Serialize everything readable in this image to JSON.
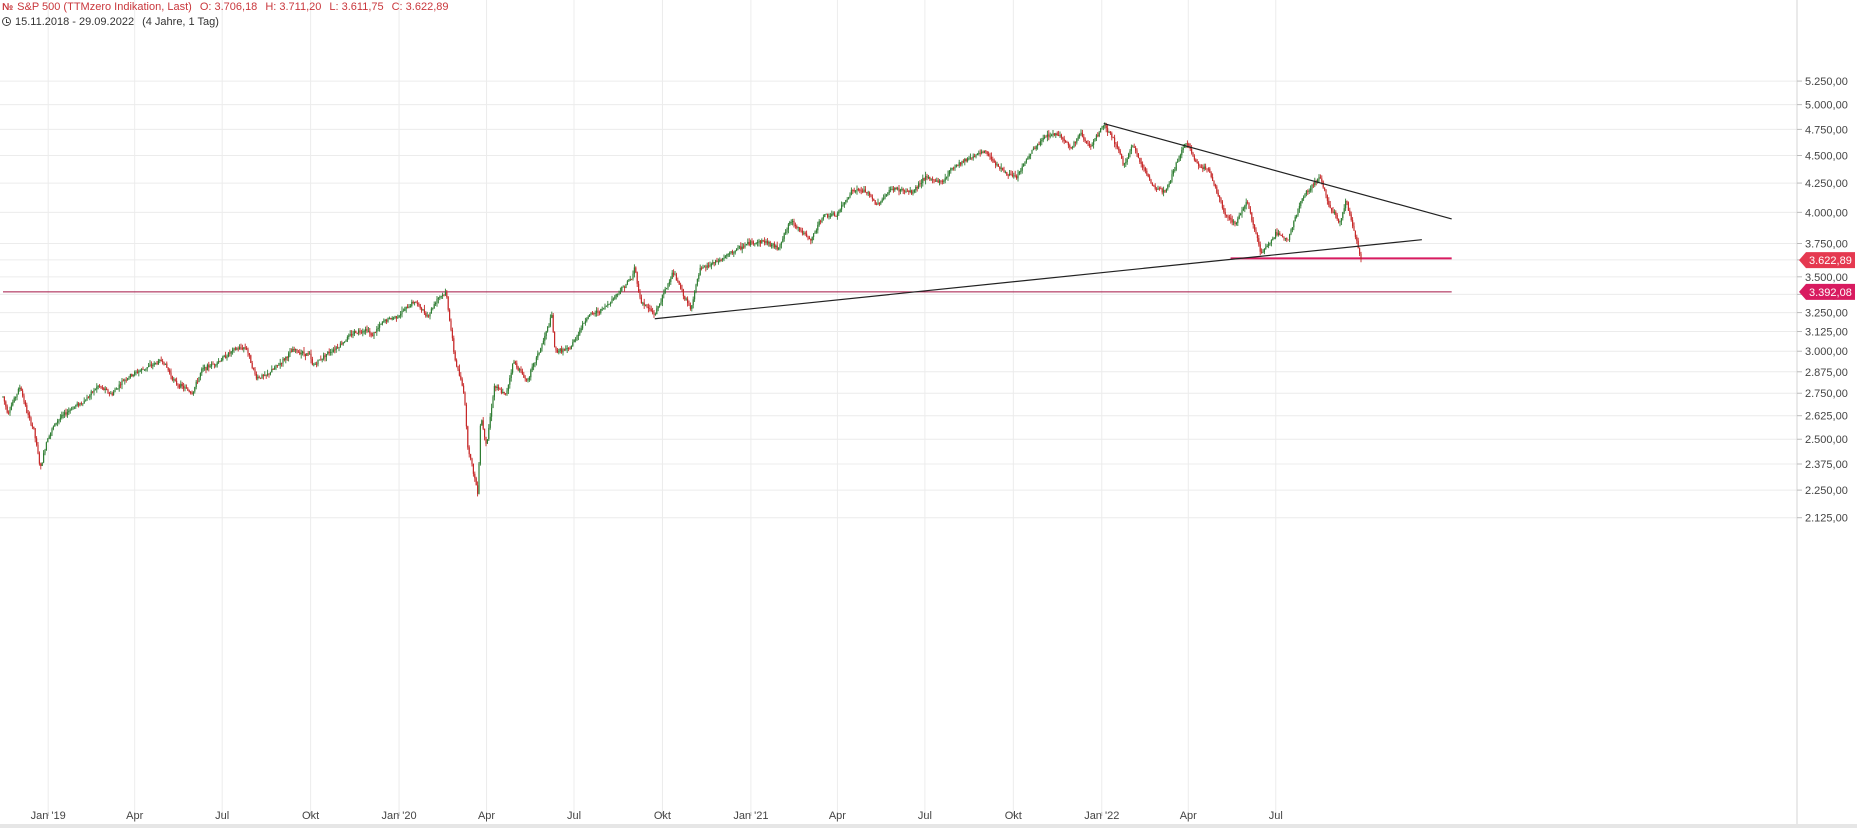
{
  "header": {
    "instrument": "S&P 500 (TTMzero Indikation, Last)",
    "open": "O: 3.706,18",
    "high": "H: 3.711,20",
    "low": "L: 3.611,75",
    "close": "C: 3.622,89",
    "range": "15.11.2018 - 29.09.2022",
    "period": "(4 Jahre, 1 Tag)"
  },
  "colors": {
    "up": "#2e7d32",
    "down": "#c62828",
    "grid": "#ececec",
    "price_line": "#d81b60",
    "level_line": "#a31545",
    "trend_line": "#222222"
  },
  "chart_data": {
    "type": "line",
    "description_kind": "daily candlestick price chart",
    "y_axis": {
      "ticks": [
        2125,
        2250,
        2375,
        2500,
        2625,
        2750,
        2875,
        3000,
        3125,
        3250,
        3375,
        3500,
        3625,
        3750,
        4000,
        4250,
        4500,
        4750,
        5000,
        5250
      ],
      "tick_labels": [
        "2.125,00",
        "2.250,00",
        "2.375,00",
        "2.500,00",
        "2.625,00",
        "2.750,00",
        "2.875,00",
        "3.000,00",
        "3.125,00",
        "3.250,00",
        "3.375,00",
        "3.500,00",
        "3.625,00",
        "3.750,00",
        "4.000,00",
        "4.250,00",
        "4.500,00",
        "4.750,00",
        "5.000,00",
        "5.250,00"
      ],
      "scale": "log",
      "position": "right"
    },
    "x_axis": {
      "range": [
        "2018-11-15",
        "2022-09-29"
      ],
      "ticks": [
        {
          "date": "2019-01-01",
          "label": "Jan '19"
        },
        {
          "date": "2019-04-01",
          "label": "Apr"
        },
        {
          "date": "2019-07-01",
          "label": "Jul"
        },
        {
          "date": "2019-10-01",
          "label": "Okt"
        },
        {
          "date": "2020-01-01",
          "label": "Jan '20"
        },
        {
          "date": "2020-04-01",
          "label": "Apr"
        },
        {
          "date": "2020-07-01",
          "label": "Jul"
        },
        {
          "date": "2020-10-01",
          "label": "Okt"
        },
        {
          "date": "2021-01-01",
          "label": "Jan '21"
        },
        {
          "date": "2021-04-01",
          "label": "Apr"
        },
        {
          "date": "2021-07-01",
          "label": "Jul"
        },
        {
          "date": "2021-10-01",
          "label": "Okt"
        },
        {
          "date": "2022-01-01",
          "label": "Jan '22"
        },
        {
          "date": "2022-04-01",
          "label": "Apr"
        },
        {
          "date": "2022-07-01",
          "label": "Jul"
        }
      ]
    },
    "grid": true,
    "price_path": [
      [
        "2018-11-15",
        2730
      ],
      [
        "2018-11-20",
        2640
      ],
      [
        "2018-12-03",
        2790
      ],
      [
        "2018-12-10",
        2640
      ],
      [
        "2018-12-17",
        2550
      ],
      [
        "2018-12-24",
        2351
      ],
      [
        "2018-12-31",
        2506
      ],
      [
        "2019-01-10",
        2596
      ],
      [
        "2019-01-25",
        2665
      ],
      [
        "2019-02-08",
        2708
      ],
      [
        "2019-02-22",
        2792
      ],
      [
        "2019-03-08",
        2743
      ],
      [
        "2019-03-20",
        2825
      ],
      [
        "2019-04-01",
        2867
      ],
      [
        "2019-04-15",
        2905
      ],
      [
        "2019-04-30",
        2945
      ],
      [
        "2019-05-13",
        2811
      ],
      [
        "2019-05-31",
        2752
      ],
      [
        "2019-06-10",
        2886
      ],
      [
        "2019-06-28",
        2941
      ],
      [
        "2019-07-15",
        3014
      ],
      [
        "2019-07-26",
        3025
      ],
      [
        "2019-08-05",
        2844
      ],
      [
        "2019-08-15",
        2847
      ],
      [
        "2019-08-30",
        2926
      ],
      [
        "2019-09-13",
        3007
      ],
      [
        "2019-09-30",
        2976
      ],
      [
        "2019-10-03",
        2910
      ],
      [
        "2019-10-18",
        2986
      ],
      [
        "2019-10-31",
        3037
      ],
      [
        "2019-11-15",
        3120
      ],
      [
        "2019-11-29",
        3141
      ],
      [
        "2019-12-03",
        3093
      ],
      [
        "2019-12-16",
        3191
      ],
      [
        "2019-12-31",
        3230
      ],
      [
        "2020-01-17",
        3329
      ],
      [
        "2020-01-31",
        3225
      ],
      [
        "2020-02-10",
        3352
      ],
      [
        "2020-02-19",
        3386
      ],
      [
        "2020-02-28",
        2954
      ],
      [
        "2020-03-09",
        2746
      ],
      [
        "2020-03-12",
        2480
      ],
      [
        "2020-03-16",
        2386
      ],
      [
        "2020-03-23",
        2237
      ],
      [
        "2020-03-26",
        2630
      ],
      [
        "2020-04-01",
        2470
      ],
      [
        "2020-04-09",
        2790
      ],
      [
        "2020-04-21",
        2737
      ],
      [
        "2020-04-29",
        2940
      ],
      [
        "2020-05-13",
        2820
      ],
      [
        "2020-05-29",
        3044
      ],
      [
        "2020-06-08",
        3232
      ],
      [
        "2020-06-11",
        3002
      ],
      [
        "2020-06-26",
        3009
      ],
      [
        "2020-07-15",
        3227
      ],
      [
        "2020-07-31",
        3271
      ],
      [
        "2020-08-14",
        3373
      ],
      [
        "2020-08-31",
        3500
      ],
      [
        "2020-09-02",
        3580
      ],
      [
        "2020-09-08",
        3331
      ],
      [
        "2020-09-23",
        3237
      ],
      [
        "2020-10-12",
        3534
      ],
      [
        "2020-10-30",
        3270
      ],
      [
        "2020-11-09",
        3550
      ],
      [
        "2020-11-30",
        3622
      ],
      [
        "2020-12-15",
        3694
      ],
      [
        "2020-12-31",
        3756
      ],
      [
        "2021-01-15",
        3768
      ],
      [
        "2021-01-29",
        3714
      ],
      [
        "2021-02-12",
        3934
      ],
      [
        "2021-03-04",
        3768
      ],
      [
        "2021-03-17",
        3974
      ],
      [
        "2021-03-31",
        3973
      ],
      [
        "2021-04-16",
        4185
      ],
      [
        "2021-04-30",
        4181
      ],
      [
        "2021-05-12",
        4063
      ],
      [
        "2021-05-28",
        4204
      ],
      [
        "2021-06-18",
        4166
      ],
      [
        "2021-06-30",
        4297
      ],
      [
        "2021-07-19",
        4258
      ],
      [
        "2021-07-30",
        4395
      ],
      [
        "2021-08-16",
        4479
      ],
      [
        "2021-09-02",
        4537
      ],
      [
        "2021-09-20",
        4358
      ],
      [
        "2021-09-30",
        4307
      ],
      [
        "2021-10-04",
        4300
      ],
      [
        "2021-10-20",
        4536
      ],
      [
        "2021-11-05",
        4697
      ],
      [
        "2021-11-18",
        4704
      ],
      [
        "2021-11-30",
        4567
      ],
      [
        "2021-12-10",
        4712
      ],
      [
        "2021-12-20",
        4568
      ],
      [
        "2022-01-03",
        4796
      ],
      [
        "2022-01-13",
        4659
      ],
      [
        "2022-01-24",
        4410
      ],
      [
        "2022-02-02",
        4589
      ],
      [
        "2022-02-23",
        4225
      ],
      [
        "2022-03-08",
        4170
      ],
      [
        "2022-03-29",
        4631
      ],
      [
        "2022-04-12",
        4397
      ],
      [
        "2022-04-21",
        4393
      ],
      [
        "2022-05-09",
        3991
      ],
      [
        "2022-05-20",
        3901
      ],
      [
        "2022-06-01",
        4101
      ],
      [
        "2022-06-16",
        3666
      ],
      [
        "2022-07-01",
        3825
      ],
      [
        "2022-07-14",
        3790
      ],
      [
        "2022-07-29",
        4130
      ],
      [
        "2022-08-16",
        4305
      ],
      [
        "2022-08-26",
        4057
      ],
      [
        "2022-09-06",
        3908
      ],
      [
        "2022-09-12",
        4110
      ],
      [
        "2022-09-20",
        3856
      ],
      [
        "2022-09-27",
        3650
      ],
      [
        "2022-09-29",
        3622.89
      ]
    ],
    "last_price": {
      "value": 3622.89,
      "label": "3.622,89"
    },
    "levels": [
      {
        "value": 3392.08,
        "label": "3.392,08",
        "from": "2018-11-15",
        "to": "2022-12-31"
      },
      {
        "value": 3636,
        "from": "2022-05-15",
        "to": "2022-12-31"
      }
    ],
    "trend_lines": [
      {
        "points": [
          [
            "2020-09-23",
            3209
          ],
          [
            "2022-11-30",
            3780
          ]
        ]
      },
      {
        "points": [
          [
            "2022-01-03",
            4808
          ],
          [
            "2022-12-31",
            3946
          ]
        ]
      }
    ]
  }
}
